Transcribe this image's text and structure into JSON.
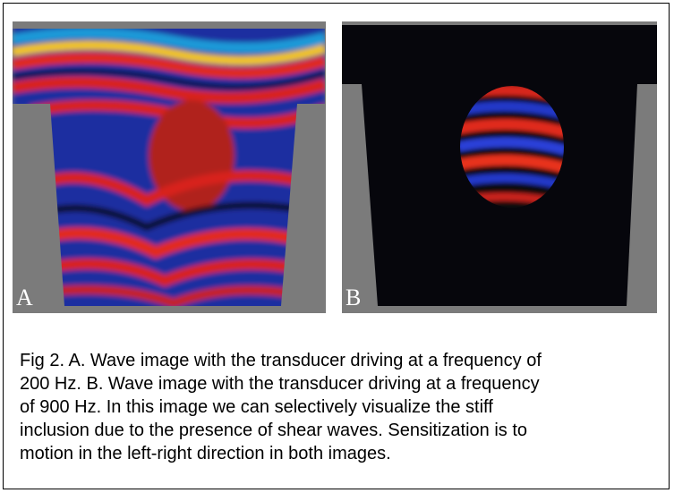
{
  "panels": [
    {
      "label": "A"
    },
    {
      "label": "B"
    }
  ],
  "caption": {
    "lines": [
      "Fig 2. A. Wave image with the transducer driving at a frequency of",
      "200 Hz. B. Wave image with the transducer driving at a frequency",
      "of 900 Hz. In this image we can selectively visualize the stiff",
      "inclusion due to the presence of shear waves. Sensitization is to",
      "motion in the left-right direction in both images."
    ]
  }
}
